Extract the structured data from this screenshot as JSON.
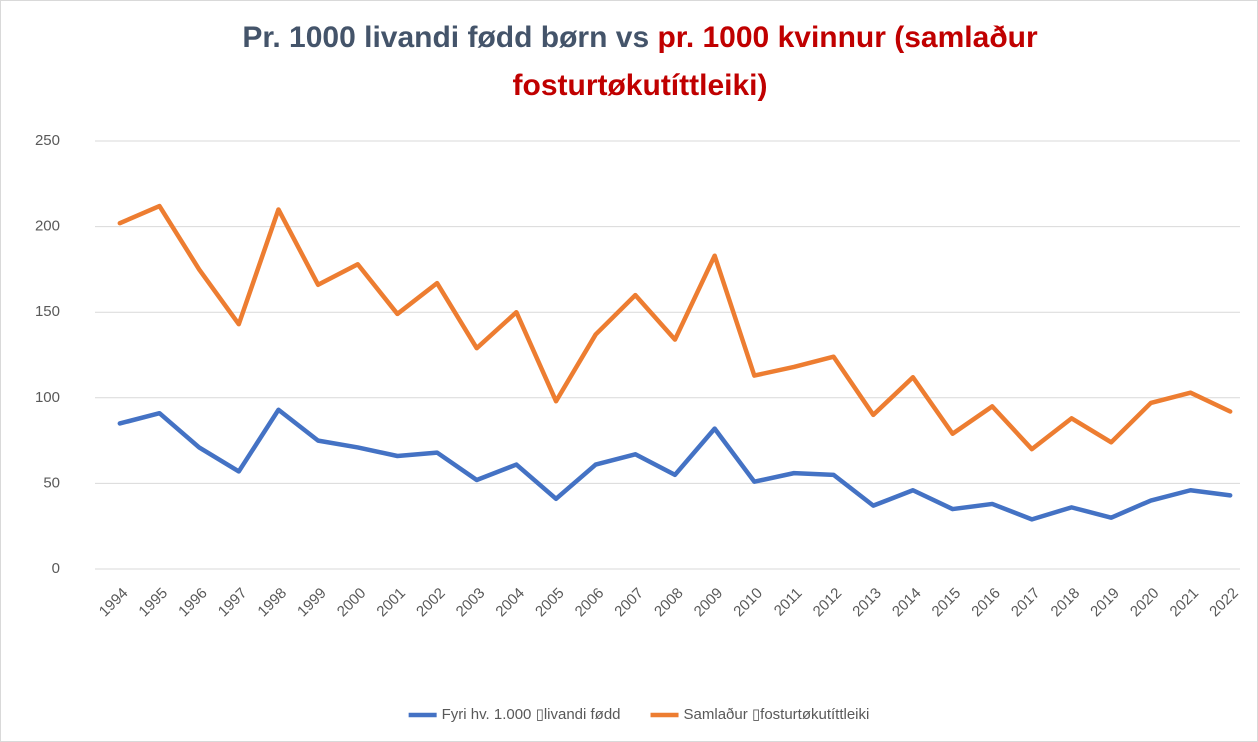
{
  "chart_data": {
    "type": "line",
    "title": [
      "Pr. 1000 livandi fødd børn vs",
      "pr. 1000 kvinnur (samlaður fosturtøkutíttleiki)"
    ],
    "categories": [
      "1994",
      "1995",
      "1996",
      "1997",
      "1998",
      "1999",
      "2000",
      "2001",
      "2002",
      "2003",
      "2004",
      "2005",
      "2006",
      "2007",
      "2008",
      "2009",
      "2010",
      "2011",
      "2012",
      "2013",
      "2014",
      "2015",
      "2016",
      "2017",
      "2018",
      "2019",
      "2020",
      "2021",
      "2022"
    ],
    "series": [
      {
        "name": "Fyri hv. 1.000 ▯livandi fødd",
        "color": "#4472c4",
        "values": [
          85,
          91,
          71,
          57,
          93,
          75,
          71,
          66,
          68,
          52,
          61,
          41,
          61,
          67,
          55,
          82,
          51,
          56,
          55,
          37,
          46,
          35,
          38,
          29,
          36,
          30,
          40,
          46,
          43
        ]
      },
      {
        "name": "Samlaður ▯fosturtøkutíttleiki",
        "color": "#ed7d31",
        "values": [
          202,
          212,
          175,
          143,
          210,
          166,
          178,
          149,
          167,
          129,
          150,
          98,
          137,
          160,
          134,
          183,
          113,
          118,
          124,
          90,
          112,
          79,
          95,
          70,
          88,
          74,
          97,
          103,
          92
        ]
      }
    ],
    "ylim": [
      0,
      250
    ],
    "yticks": [
      0,
      50,
      100,
      150,
      200,
      250
    ],
    "grid": true,
    "legend": "bottom"
  }
}
